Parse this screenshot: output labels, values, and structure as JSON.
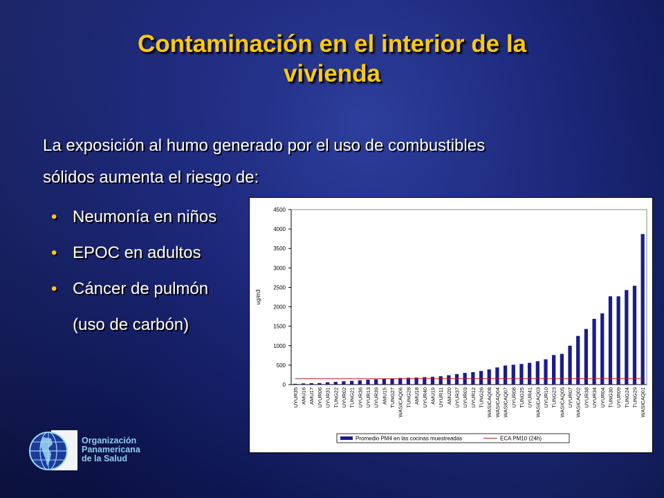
{
  "slide": {
    "title_line1": "Contaminación en el interior de la",
    "title_line2": "vivienda",
    "intro_line1": "La exposición al humo generado por el uso de combustibles",
    "intro_line2": "sólidos aumenta el riesgo de:",
    "bullets": [
      {
        "label": "Neumonía en niños"
      },
      {
        "label": "EPOC en adultos"
      },
      {
        "label": "Cáncer de pulmón"
      },
      {
        "label": "(uso de carbón)"
      }
    ]
  },
  "organization": {
    "line1": "Organización",
    "line2": "Panamericana",
    "line3": "de la Salud"
  },
  "colors": {
    "title": "#ffcc00",
    "text": "#ffffff",
    "bar": "#1c1c8c",
    "reference_line": "#b22222",
    "org_text": "#8fd0f0"
  },
  "chart_data": {
    "type": "bar",
    "ylabel": "ug/m3",
    "ylim": [
      0,
      4500
    ],
    "yticks": [
      0,
      500,
      1000,
      1500,
      2000,
      2500,
      3000,
      3500,
      4000,
      4500
    ],
    "categories": [
      "UYUR35",
      "AMU16",
      "AMU17",
      "UYUR06",
      "UYUR31",
      "TUNG22",
      "UYUR02",
      "TUNG21",
      "UYUR36",
      "UYUR13",
      "UYUR39",
      "AMU15",
      "TUNG27",
      "WASICAQ06",
      "TUNG28",
      "AMU18",
      "UYUR40",
      "AMU19",
      "UYUR11",
      "AMU20",
      "UYUR37",
      "UYUR03",
      "UYUR12",
      "TUNG26",
      "WASICAQ08",
      "WASICAQ04",
      "WASICAQ07",
      "UYUR08",
      "TUNG25",
      "UYUR41",
      "WASICAQ03",
      "UYUR10",
      "TUNG23",
      "WASICAQ05",
      "UYUR07",
      "WASICAQ02",
      "UYUR38",
      "UYUR34",
      "UYUR04",
      "TUNG30",
      "UYUR09",
      "TUNG24",
      "TUNG29",
      "WASICAQ01"
    ],
    "series": [
      {
        "name": "Promedio PM4 en las cocinas muestreadas",
        "values": [
          20,
          30,
          35,
          40,
          60,
          70,
          85,
          95,
          110,
          125,
          135,
          145,
          160,
          170,
          175,
          180,
          190,
          200,
          215,
          240,
          270,
          300,
          320,
          350,
          390,
          440,
          490,
          510,
          530,
          560,
          600,
          650,
          760,
          790,
          1000,
          1250,
          1430,
          1690,
          1830,
          2270,
          2270,
          2430,
          2540,
          3870
        ]
      },
      {
        "name": "ECA PM10 (24h)",
        "type": "line",
        "value": 150
      }
    ],
    "legend_position": "bottom"
  }
}
